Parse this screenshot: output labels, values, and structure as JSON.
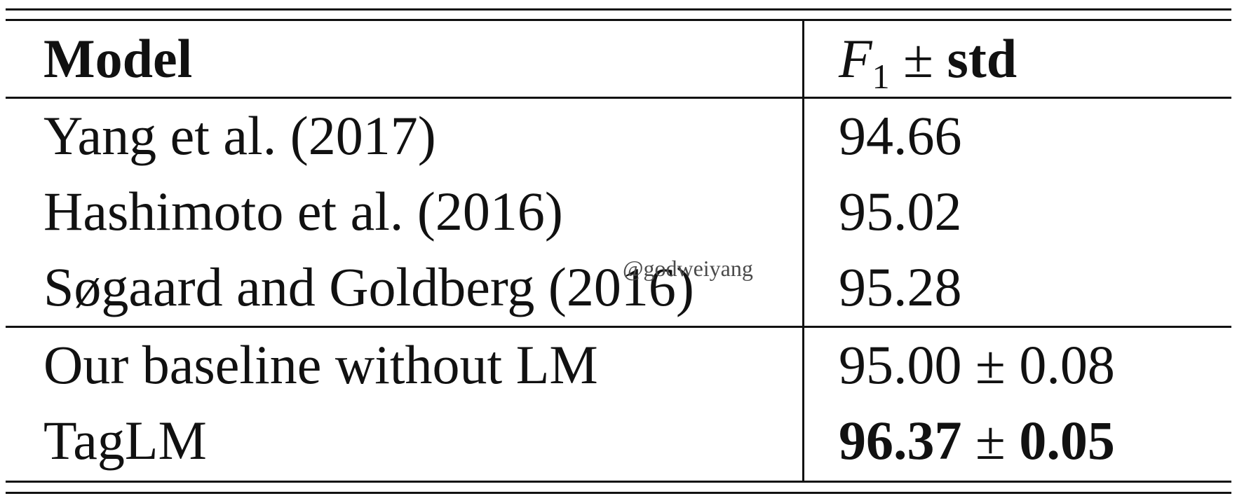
{
  "table": {
    "header": {
      "model": "Model",
      "f1_symbol": "F",
      "f1_subscript": "1",
      "pm": "±",
      "std": "std"
    },
    "rows": [
      {
        "model": "Yang et al. (2017)",
        "score": "94.66",
        "std": ""
      },
      {
        "model": "Hashimoto et al. (2016)",
        "score": "95.02",
        "std": ""
      },
      {
        "model": "Søgaard and Goldberg (2016)",
        "score": "95.28",
        "std": ""
      },
      {
        "model": "Our baseline without LM",
        "score": "95.00",
        "pm": "±",
        "std": "0.08"
      },
      {
        "model": "TagLM",
        "score": "96.37",
        "pm": "±",
        "std": "0.05"
      }
    ]
  },
  "watermark": "@godweiyang"
}
